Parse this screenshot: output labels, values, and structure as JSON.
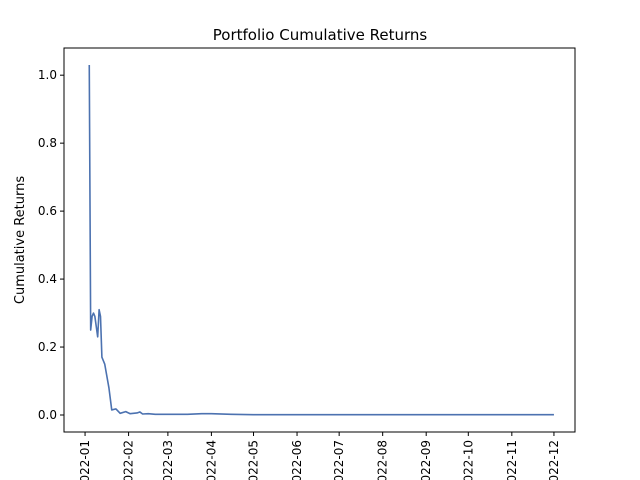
{
  "chart_data": {
    "type": "line",
    "title": "Portfolio Cumulative Returns",
    "xlabel": "",
    "ylabel": "Cumulative Returns",
    "grid": false,
    "legend": "none",
    "color": "#4c72b0",
    "x_tick_labels": [
      "2022-01",
      "2022-02",
      "2022-03",
      "2022-04",
      "2022-05",
      "2022-06",
      "2022-07",
      "2022-08",
      "2022-09",
      "2022-10",
      "2022-11",
      "2022-12"
    ],
    "y_ticks": [
      0.0,
      0.2,
      0.4,
      0.6,
      0.8,
      1.0
    ],
    "y_tick_labels": [
      "0.0",
      "0.2",
      "0.4",
      "0.6",
      "0.8",
      "1.0"
    ],
    "xlim": [
      "2021-12-17",
      "2022-12-16"
    ],
    "ylim": [
      -0.05,
      1.08
    ],
    "series": [
      {
        "values": [
          {
            "x": "2022-01-04",
            "y": 1.03
          },
          {
            "x": "2022-01-05",
            "y": 0.25
          },
          {
            "x": "2022-01-06",
            "y": 0.29
          },
          {
            "x": "2022-01-07",
            "y": 0.3
          },
          {
            "x": "2022-01-08",
            "y": 0.29
          },
          {
            "x": "2022-01-10",
            "y": 0.23
          },
          {
            "x": "2022-01-11",
            "y": 0.31
          },
          {
            "x": "2022-01-12",
            "y": 0.29
          },
          {
            "x": "2022-01-13",
            "y": 0.17
          },
          {
            "x": "2022-01-15",
            "y": 0.15
          },
          {
            "x": "2022-01-18",
            "y": 0.08
          },
          {
            "x": "2022-01-20",
            "y": 0.015
          },
          {
            "x": "2022-01-23",
            "y": 0.018
          },
          {
            "x": "2022-01-26",
            "y": 0.005
          },
          {
            "x": "2022-01-30",
            "y": 0.01
          },
          {
            "x": "2022-02-02",
            "y": 0.004
          },
          {
            "x": "2022-02-07",
            "y": 0.006
          },
          {
            "x": "2022-02-09",
            "y": 0.009
          },
          {
            "x": "2022-02-11",
            "y": 0.003
          },
          {
            "x": "2022-02-15",
            "y": 0.004
          },
          {
            "x": "2022-02-20",
            "y": 0.002
          },
          {
            "x": "2022-03-01",
            "y": 0.002
          },
          {
            "x": "2022-03-15",
            "y": 0.002
          },
          {
            "x": "2022-03-25",
            "y": 0.004
          },
          {
            "x": "2022-04-01",
            "y": 0.004
          },
          {
            "x": "2022-04-15",
            "y": 0.002
          },
          {
            "x": "2022-05-01",
            "y": 0.001
          },
          {
            "x": "2022-06-01",
            "y": 0.001
          },
          {
            "x": "2022-08-01",
            "y": 0.001
          },
          {
            "x": "2022-10-01",
            "y": 0.001
          },
          {
            "x": "2022-12-01",
            "y": 0.001
          }
        ]
      }
    ]
  }
}
